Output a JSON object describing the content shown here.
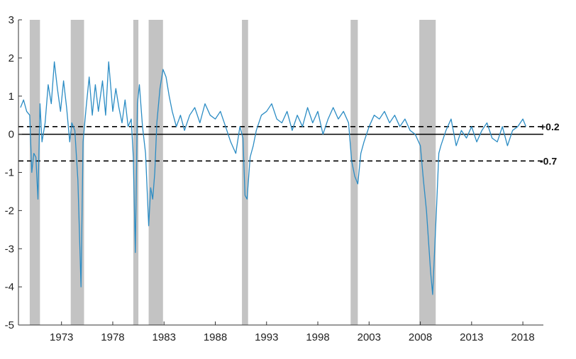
{
  "chart_data": {
    "type": "line",
    "title": "",
    "xlabel": "",
    "ylabel": "",
    "xlim": [
      1968.8,
      2020.0
    ],
    "ylim": [
      -5,
      3
    ],
    "grid": false,
    "x_ticks": [
      1973,
      1978,
      1983,
      1988,
      1993,
      1998,
      2003,
      2008,
      2013,
      2018
    ],
    "y_ticks": [
      3,
      2,
      1,
      0,
      -1,
      -2,
      -3,
      -4,
      -5
    ],
    "colors": {
      "series": "#2b8cc4",
      "shading": "#c3c3c3",
      "reference": "#000000"
    },
    "recessions": [
      [
        1969.9,
        1970.9
      ],
      [
        1973.9,
        1975.2
      ],
      [
        1980.0,
        1980.5
      ],
      [
        1981.5,
        1982.9
      ],
      [
        1990.6,
        1991.2
      ],
      [
        2001.2,
        2001.9
      ],
      [
        2007.9,
        2009.5
      ]
    ],
    "reference_lines": [
      {
        "value": 0,
        "style": "solid",
        "label": ""
      },
      {
        "value": 0.2,
        "style": "dashed",
        "label": "+0.2"
      },
      {
        "value": -0.7,
        "style": "dashed",
        "label": "-0.7"
      }
    ],
    "series": [
      {
        "name": "",
        "x": [
          1969.0,
          1969.3,
          1969.6,
          1969.9,
          1970.1,
          1970.3,
          1970.5,
          1970.7,
          1970.9,
          1971.1,
          1971.4,
          1971.7,
          1972.0,
          1972.3,
          1972.6,
          1972.9,
          1973.2,
          1973.5,
          1973.8,
          1974.0,
          1974.3,
          1974.6,
          1974.9,
          1975.1,
          1975.4,
          1975.7,
          1976.0,
          1976.3,
          1976.6,
          1977.0,
          1977.3,
          1977.6,
          1978.0,
          1978.3,
          1978.6,
          1978.9,
          1979.2,
          1979.5,
          1979.8,
          1980.0,
          1980.2,
          1980.4,
          1980.6,
          1980.9,
          1981.2,
          1981.5,
          1981.7,
          1981.9,
          1982.1,
          1982.3,
          1982.6,
          1982.9,
          1983.2,
          1983.5,
          1983.8,
          1984.2,
          1984.6,
          1985.0,
          1985.5,
          1986.0,
          1986.5,
          1987.0,
          1987.5,
          1988.0,
          1988.5,
          1989.0,
          1989.5,
          1990.0,
          1990.4,
          1990.7,
          1990.9,
          1991.1,
          1991.4,
          1991.7,
          1992.0,
          1992.5,
          1993.0,
          1993.5,
          1994.0,
          1994.5,
          1995.0,
          1995.5,
          1996.0,
          1996.5,
          1997.0,
          1997.5,
          1998.0,
          1998.5,
          1999.0,
          1999.5,
          2000.0,
          2000.5,
          2001.0,
          2001.3,
          2001.6,
          2001.9,
          2002.2,
          2002.5,
          2003.0,
          2003.5,
          2004.0,
          2004.5,
          2005.0,
          2005.5,
          2006.0,
          2006.5,
          2007.0,
          2007.5,
          2008.0,
          2008.3,
          2008.6,
          2008.8,
          2009.0,
          2009.2,
          2009.4,
          2009.6,
          2009.8,
          2010.0,
          2010.5,
          2011.0,
          2011.5,
          2012.0,
          2012.5,
          2013.0,
          2013.5,
          2014.0,
          2014.5,
          2015.0,
          2015.5,
          2016.0,
          2016.5,
          2017.0,
          2017.5,
          2018.0,
          2018.3
        ],
        "values": [
          0.7,
          0.9,
          0.6,
          0.5,
          -1.0,
          -0.5,
          -0.6,
          -1.7,
          0.8,
          -0.2,
          0.3,
          1.3,
          0.8,
          1.9,
          1.2,
          0.6,
          1.4,
          0.7,
          -0.2,
          0.3,
          0.1,
          -1.2,
          -4.0,
          -0.2,
          0.7,
          1.5,
          0.5,
          1.3,
          0.6,
          1.4,
          0.5,
          1.9,
          0.6,
          1.2,
          0.7,
          0.3,
          0.9,
          0.2,
          0.4,
          -0.6,
          -3.1,
          0.8,
          1.3,
          0.2,
          -0.5,
          -2.4,
          -1.4,
          -1.7,
          -1.0,
          0.3,
          1.2,
          1.7,
          1.5,
          1.0,
          0.6,
          0.2,
          0.5,
          0.1,
          0.5,
          0.7,
          0.3,
          0.8,
          0.5,
          0.4,
          0.6,
          0.2,
          -0.2,
          -0.5,
          0.2,
          -0.1,
          -1.6,
          -1.7,
          -0.6,
          -0.3,
          0.1,
          0.5,
          0.6,
          0.8,
          0.4,
          0.3,
          0.6,
          0.1,
          0.5,
          0.2,
          0.7,
          0.3,
          0.6,
          0.0,
          0.4,
          0.7,
          0.4,
          0.6,
          0.3,
          -0.7,
          -1.1,
          -1.3,
          -0.5,
          -0.2,
          0.2,
          0.5,
          0.4,
          0.6,
          0.3,
          0.5,
          0.2,
          0.4,
          0.1,
          0.0,
          -0.3,
          -1.2,
          -2.0,
          -2.8,
          -3.6,
          -4.2,
          -3.0,
          -1.8,
          -0.5,
          -0.3,
          0.1,
          0.4,
          -0.3,
          0.1,
          -0.1,
          0.2,
          -0.2,
          0.1,
          0.3,
          -0.1,
          -0.2,
          0.2,
          -0.3,
          0.1,
          0.2,
          0.4,
          0.2
        ]
      }
    ]
  }
}
